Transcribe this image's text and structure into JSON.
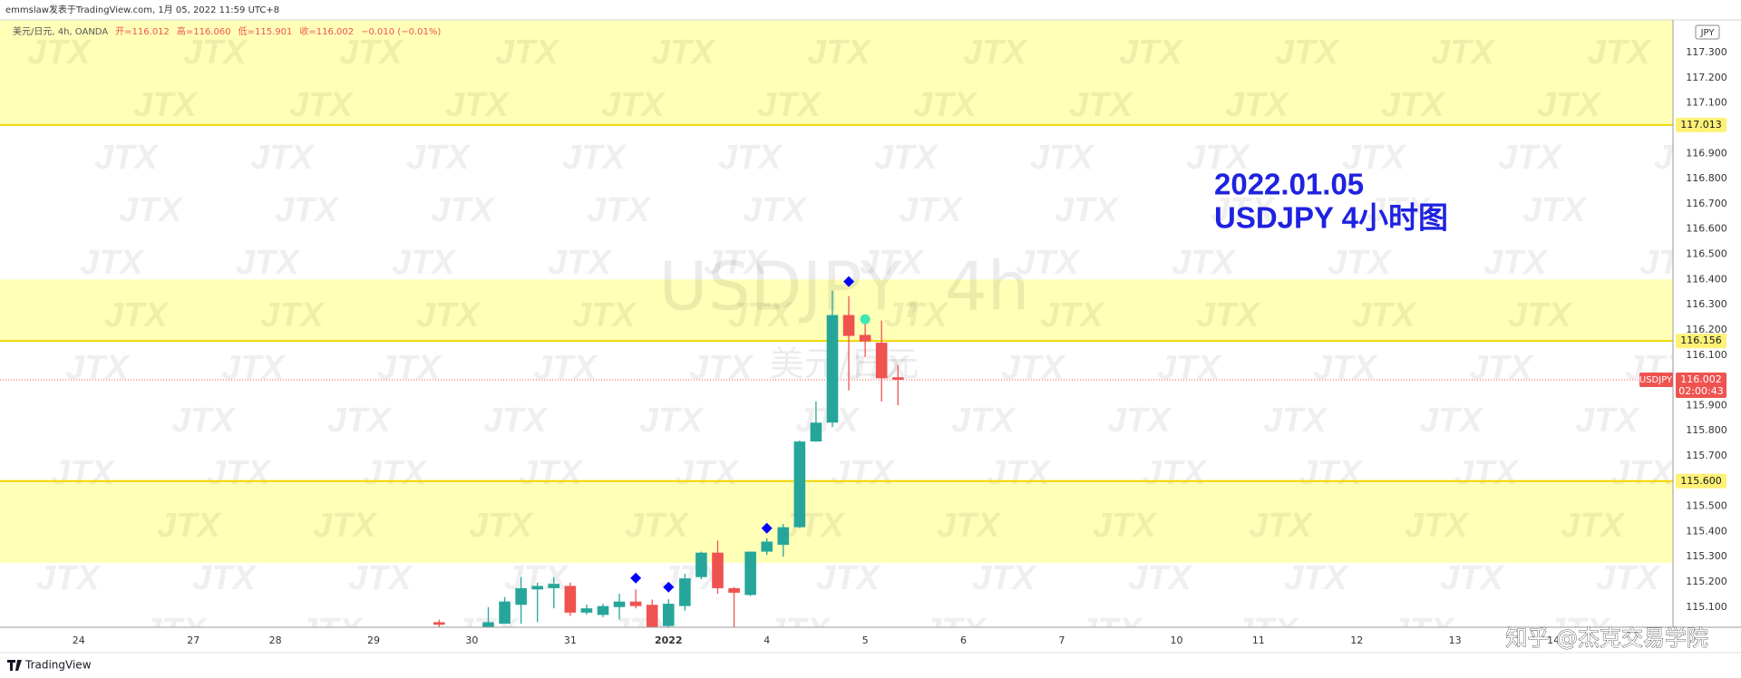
{
  "header": "emmslaw发表于TradingView.com, 1月 05, 2022 11:59 UTC+8",
  "footer": "TradingView",
  "credit": "知乎 @杰克交易学院",
  "chart_data": {
    "type": "candlestick",
    "symbol_line": "美元/日元, 4h, OANDA",
    "legend_items": [
      "开=116.012",
      "高=116.060",
      "低=115.901",
      "收=116.002",
      "−0.010 (−0.01%)"
    ],
    "watermark": "USDJPY, 4h",
    "watermark_sub": "美元/日元",
    "watermark_logo": "JTX",
    "annotations": [
      "2022.01.05",
      "USDJPY 4小时图"
    ],
    "currency": "JPY",
    "up_color": "#26a69a",
    "down_color": "#ef5350",
    "x": [
      -2,
      1,
      2,
      3,
      4,
      5,
      6,
      7,
      8,
      9,
      10,
      11,
      12,
      13,
      14,
      15,
      16,
      17,
      18,
      19,
      20,
      21,
      22,
      23,
      24,
      25,
      26
    ],
    "open": [
      115.04,
      115.02,
      115.034,
      115.109,
      115.17,
      115.175,
      115.184,
      115.078,
      115.069,
      115.1,
      115.122,
      115.109,
      115.025,
      115.104,
      115.219,
      115.316,
      115.175,
      115.148,
      115.32,
      115.347,
      115.417,
      115.757,
      115.832,
      116.259,
      116.18,
      116.149,
      116.012
    ],
    "high": [
      115.05,
      115.1,
      115.14,
      115.219,
      115.197,
      115.219,
      115.197,
      115.11,
      115.113,
      115.153,
      115.17,
      115.13,
      115.131,
      115.232,
      115.32,
      115.364,
      115.18,
      115.32,
      115.373,
      115.43,
      115.761,
      115.916,
      116.356,
      116.334,
      116.229,
      116.237,
      116.06
    ],
    "low": [
      115.02,
      115.01,
      115.034,
      115.034,
      115.04,
      115.095,
      115.065,
      115.07,
      115.06,
      115.05,
      115.095,
      115.02,
      115.02,
      115.086,
      115.21,
      115.153,
      115.02,
      115.144,
      115.307,
      115.3,
      115.413,
      115.757,
      115.814,
      115.96,
      116.092,
      115.916,
      115.901
    ],
    "close": [
      115.03,
      115.04,
      115.122,
      115.175,
      115.184,
      115.192,
      115.078,
      115.095,
      115.104,
      115.122,
      115.104,
      115.02,
      115.113,
      115.214,
      115.316,
      115.175,
      115.157,
      115.32,
      115.36,
      115.417,
      115.757,
      115.832,
      116.259,
      116.176,
      116.154,
      116.008,
      116.002
    ],
    "signals": {
      "x": [
        10,
        12,
        18,
        23
      ],
      "values": [
        115.215,
        115.179,
        115.413,
        116.392
      ],
      "color": "#0000ff"
    },
    "exit_signal": {
      "x": 24,
      "value": 116.242,
      "color": "#3ee6b0"
    },
    "zones": [
      {
        "top": 117.43,
        "bottom": 117.013
      },
      {
        "top": 116.4,
        "bottom": 116.156
      },
      {
        "top": 115.6,
        "bottom": 115.276
      }
    ],
    "zone_color": "#ffffb8",
    "price_lines": [
      117.013,
      116.156,
      {
        "value": 115.6,
        "label": "115.600"
      }
    ],
    "price_line_color": "#f2d600",
    "last_price": 116.002,
    "last_price_symbol": "USDJPY",
    "countdown": "02:00:43",
    "xlim": [
      -28.8,
      73.3
    ],
    "xticks": [
      {
        "value": -24,
        "label": "24"
      },
      {
        "value": -17,
        "label": "27"
      },
      {
        "value": -12,
        "label": "28"
      },
      {
        "value": -6,
        "label": "29"
      },
      {
        "value": 0,
        "label": "30"
      },
      {
        "value": 6,
        "label": "31"
      },
      {
        "value": 12,
        "label": "2022"
      },
      {
        "value": 18,
        "label": "4"
      },
      {
        "value": 24,
        "label": "5"
      },
      {
        "value": 30,
        "label": "6"
      },
      {
        "value": 36,
        "label": "7"
      },
      {
        "value": 43,
        "label": "10"
      },
      {
        "value": 48,
        "label": "11"
      },
      {
        "value": 54,
        "label": "12"
      },
      {
        "value": 60,
        "label": "13"
      },
      {
        "value": 66,
        "label": "14"
      }
    ],
    "ylim": [
      115.02,
      117.43
    ],
    "yticks": [
      {
        "value": 117.3,
        "label": "117.300"
      },
      {
        "value": 117.2,
        "label": "117.200"
      },
      {
        "value": 117.1,
        "label": "117.100"
      },
      {
        "value": 117.0,
        "label": "117.000"
      },
      {
        "value": 116.9,
        "label": "116.900"
      },
      {
        "value": 116.8,
        "label": "116.800"
      },
      {
        "value": 116.7,
        "label": "116.700"
      },
      {
        "value": 116.6,
        "label": "116.600"
      },
      {
        "value": 116.5,
        "label": "116.500"
      },
      {
        "value": 116.4,
        "label": "116.400"
      },
      {
        "value": 116.3,
        "label": "116.300"
      },
      {
        "value": 116.2,
        "label": "116.200"
      },
      {
        "value": 116.1,
        "label": "116.100"
      },
      {
        "value": 116.0,
        "label": "116.000"
      },
      {
        "value": 115.9,
        "label": "115.900"
      },
      {
        "value": 115.8,
        "label": "115.800"
      },
      {
        "value": 115.7,
        "label": "115.700"
      },
      {
        "value": 115.6,
        "label": "115.600"
      },
      {
        "value": 115.5,
        "label": "115.500"
      },
      {
        "value": 115.4,
        "label": "115.400"
      },
      {
        "value": 115.3,
        "label": "115.300"
      },
      {
        "value": 115.2,
        "label": "115.200"
      },
      {
        "value": 115.1,
        "label": "115.100"
      }
    ],
    "grid": false
  }
}
